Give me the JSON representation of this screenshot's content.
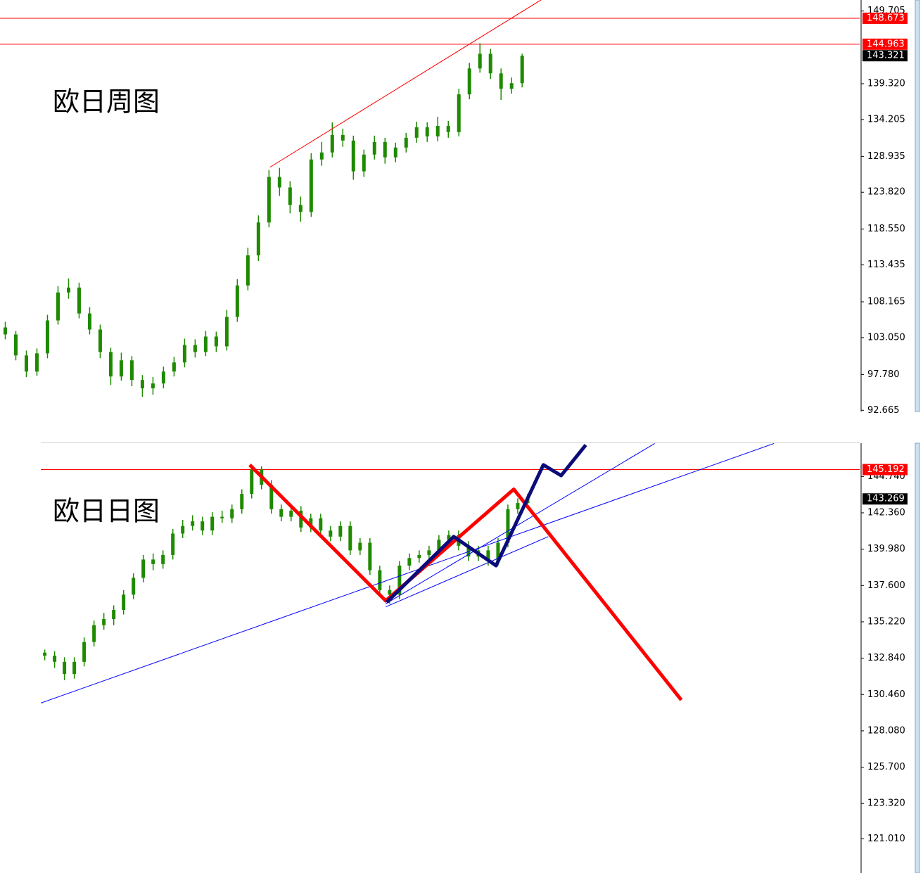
{
  "chart_data": [
    {
      "type": "candlestick",
      "title": "欧日周图",
      "color": "#1f8a00",
      "xlim": [
        -0.5,
        81
      ],
      "ylim": [
        92.49,
        151.28
      ],
      "yticks": [
        149.705,
        {
          "value": 139.32,
          "label": "139.320"
        },
        134.205,
        128.935,
        {
          "value": 123.82,
          "label": "123.820"
        },
        {
          "value": 118.55,
          "label": "118.550"
        },
        113.435,
        108.165,
        {
          "value": 103.05,
          "label": "103.050"
        },
        {
          "value": 97.78,
          "label": "97.780"
        },
        92.665
      ],
      "levels": [
        {
          "value": 148.673,
          "color": "#ff0000",
          "line": true
        },
        {
          "value": 144.963,
          "color": "#ff0000",
          "line": true
        },
        {
          "value": 143.321,
          "color": "#000000",
          "line": false
        }
      ],
      "lines": [
        {
          "color": "#ff0000",
          "style": "thin",
          "x": [
            25.1,
            50.8
          ],
          "y": [
            127.4,
            151.3
          ]
        }
      ],
      "ohlc": [
        [
          104.5,
          105.3,
          102.8,
          103.5
        ],
        [
          103.5,
          104.0,
          99.8,
          100.5
        ],
        [
          100.5,
          101.2,
          97.4,
          98.2
        ],
        [
          98.2,
          101.5,
          97.6,
          100.8
        ],
        [
          100.8,
          106.3,
          100.1,
          105.5
        ],
        [
          105.5,
          110.4,
          104.9,
          109.5
        ],
        [
          109.5,
          111.5,
          108.6,
          110.2
        ],
        [
          110.2,
          110.9,
          105.8,
          106.5
        ],
        [
          106.5,
          107.4,
          103.5,
          104.2
        ],
        [
          104.2,
          104.9,
          100.1,
          101.0
        ],
        [
          101.0,
          101.6,
          96.3,
          97.5
        ],
        [
          97.5,
          100.9,
          96.9,
          99.8
        ],
        [
          99.8,
          100.4,
          96.1,
          97.0
        ],
        [
          97.0,
          97.7,
          94.6,
          95.8
        ],
        [
          95.8,
          97.4,
          94.9,
          96.5
        ],
        [
          96.5,
          98.9,
          95.8,
          98.2
        ],
        [
          98.2,
          100.3,
          97.5,
          99.5
        ],
        [
          99.5,
          102.9,
          98.8,
          102.0
        ],
        [
          102.0,
          102.8,
          100.2,
          101.0
        ],
        [
          101.0,
          104.0,
          100.4,
          103.2
        ],
        [
          103.2,
          103.9,
          101.0,
          101.8
        ],
        [
          101.8,
          107.0,
          101.2,
          106.0
        ],
        [
          106.0,
          111.4,
          105.3,
          110.5
        ],
        [
          110.5,
          115.9,
          109.8,
          114.8
        ],
        [
          114.8,
          120.5,
          114.0,
          119.5
        ],
        [
          119.5,
          127.0,
          118.8,
          126.0
        ],
        [
          126.0,
          127.3,
          123.3,
          124.5
        ],
        [
          124.5,
          125.4,
          120.8,
          122.0
        ],
        [
          122.0,
          123.2,
          119.6,
          121.0
        ],
        [
          121.0,
          129.4,
          120.3,
          128.5
        ],
        [
          128.5,
          131.0,
          127.6,
          129.5
        ],
        [
          129.5,
          133.8,
          128.8,
          132.0
        ],
        [
          132.0,
          132.9,
          130.3,
          131.2
        ],
        [
          131.2,
          131.9,
          125.6,
          126.8
        ],
        [
          126.8,
          129.9,
          126.0,
          129.2
        ],
        [
          129.2,
          131.9,
          128.5,
          131.0
        ],
        [
          131.0,
          131.6,
          127.9,
          128.8
        ],
        [
          128.8,
          130.9,
          128.1,
          130.2
        ],
        [
          130.2,
          132.3,
          129.5,
          131.6
        ],
        [
          131.6,
          133.9,
          130.9,
          133.1
        ],
        [
          133.1,
          133.8,
          131.0,
          131.8
        ],
        [
          131.8,
          134.6,
          131.1,
          133.3
        ],
        [
          133.3,
          134.0,
          131.6,
          132.4
        ],
        [
          132.4,
          138.6,
          131.8,
          137.8
        ],
        [
          137.8,
          142.3,
          137.1,
          141.5
        ],
        [
          141.5,
          145.1,
          140.9,
          143.6
        ],
        [
          143.6,
          144.3,
          140.0,
          140.8
        ],
        [
          140.8,
          141.5,
          137.0,
          138.6
        ],
        [
          138.6,
          140.2,
          137.9,
          139.4
        ],
        [
          139.4,
          143.6,
          138.8,
          143.3
        ]
      ]
    },
    {
      "type": "candlestick",
      "title": "欧日日图",
      "color": "#1f8a00",
      "xlim": [
        -0.4,
        82.7
      ],
      "ylim": [
        118.77,
        146.92
      ],
      "yticks": [
        {
          "value": 144.74,
          "label": "144.740"
        },
        {
          "value": 142.36,
          "label": "142.360"
        },
        {
          "value": 139.98,
          "label": "139.980"
        },
        {
          "value": 137.6,
          "label": "137.600"
        },
        {
          "value": 135.22,
          "label": "135.220"
        },
        {
          "value": 132.84,
          "label": "132.840"
        },
        {
          "value": 130.46,
          "label": "130.460"
        },
        {
          "value": 128.08,
          "label": "128.080"
        },
        {
          "value": 125.7,
          "label": "125.700"
        },
        {
          "value": 123.32,
          "label": "123.320"
        },
        {
          "value": 121.01,
          "label": "121.010"
        }
      ],
      "levels": [
        {
          "value": 145.192,
          "color": "#ff0000",
          "line": true
        },
        {
          "value": 143.269,
          "color": "#000000",
          "line": false
        }
      ],
      "lines": [
        {
          "color": "#0000ff",
          "style": "thin",
          "x": [
            -0.4,
            74
          ],
          "y": [
            129.9,
            146.9
          ]
        },
        {
          "color": "#0000ff",
          "style": "thin",
          "x": [
            34.6,
            61.9
          ],
          "y": [
            136.4,
            146.9
          ]
        },
        {
          "color": "#0000ff",
          "style": "thin",
          "x": [
            34.6,
            51.1
          ],
          "y": [
            136.2,
            140.8
          ]
        },
        {
          "color": "#ff0000",
          "style": "thick",
          "x": [
            20.8,
            34.6,
            47.6,
            64.6
          ],
          "y": [
            145.5,
            136.6,
            143.9,
            130.1
          ]
        },
        {
          "color": "#0b0b7a",
          "style": "thick",
          "x": [
            34.7,
            41.5,
            45.8,
            50.6,
            52.4,
            54.9
          ],
          "y": [
            136.5,
            140.8,
            138.9,
            145.5,
            144.8,
            146.8
          ]
        }
      ],
      "ohlc": [
        [
          133.2,
          133.4,
          132.7,
          133.0
        ],
        [
          133.0,
          133.3,
          132.2,
          132.6
        ],
        [
          132.6,
          132.9,
          131.4,
          131.8
        ],
        [
          131.8,
          132.9,
          131.5,
          132.6
        ],
        [
          132.6,
          134.2,
          132.3,
          133.9
        ],
        [
          133.9,
          135.3,
          133.6,
          135.0
        ],
        [
          135.0,
          135.8,
          134.7,
          135.4
        ],
        [
          135.4,
          136.3,
          135.0,
          136.0
        ],
        [
          136.0,
          137.3,
          135.7,
          137.0
        ],
        [
          137.0,
          138.4,
          136.7,
          138.1
        ],
        [
          138.1,
          139.6,
          137.8,
          139.3
        ],
        [
          139.3,
          139.7,
          138.6,
          139.0
        ],
        [
          139.0,
          139.9,
          138.7,
          139.6
        ],
        [
          139.6,
          141.3,
          139.3,
          141.0
        ],
        [
          141.0,
          141.9,
          140.7,
          141.5
        ],
        [
          141.5,
          142.2,
          141.2,
          141.8
        ],
        [
          141.8,
          142.1,
          140.9,
          141.2
        ],
        [
          141.2,
          142.4,
          140.9,
          142.1
        ],
        [
          142.1,
          142.5,
          141.7,
          142.0
        ],
        [
          142.0,
          142.9,
          141.7,
          142.6
        ],
        [
          142.6,
          143.9,
          142.3,
          143.6
        ],
        [
          143.6,
          145.5,
          143.3,
          145.2
        ],
        [
          145.2,
          145.4,
          143.9,
          144.2
        ],
        [
          144.2,
          144.5,
          142.3,
          142.6
        ],
        [
          142.6,
          142.9,
          141.8,
          142.1
        ],
        [
          142.1,
          142.8,
          141.8,
          142.5
        ],
        [
          142.5,
          142.8,
          141.1,
          141.4
        ],
        [
          141.4,
          142.3,
          141.1,
          142.0
        ],
        [
          142.0,
          142.3,
          140.9,
          141.2
        ],
        [
          141.2,
          141.5,
          140.5,
          140.8
        ],
        [
          140.8,
          141.8,
          140.5,
          141.5
        ],
        [
          141.5,
          141.8,
          139.6,
          139.9
        ],
        [
          139.9,
          140.7,
          139.6,
          140.4
        ],
        [
          140.4,
          140.7,
          138.3,
          138.6
        ],
        [
          138.6,
          138.9,
          137.0,
          137.3
        ],
        [
          137.3,
          137.6,
          136.4,
          137.0
        ],
        [
          137.0,
          139.2,
          136.7,
          138.9
        ],
        [
          138.9,
          139.7,
          138.6,
          139.4
        ],
        [
          139.4,
          139.9,
          139.1,
          139.6
        ],
        [
          139.6,
          140.2,
          139.3,
          139.9
        ],
        [
          139.9,
          140.9,
          139.6,
          140.6
        ],
        [
          140.6,
          141.2,
          140.3,
          140.9
        ],
        [
          140.9,
          141.2,
          139.9,
          140.2
        ],
        [
          140.2,
          140.5,
          139.2,
          139.5
        ],
        [
          139.5,
          140.2,
          139.2,
          139.9
        ],
        [
          139.9,
          140.2,
          138.9,
          139.2
        ],
        [
          139.2,
          140.7,
          138.9,
          140.4
        ],
        [
          140.4,
          142.9,
          140.1,
          142.6
        ],
        [
          142.6,
          143.3,
          142.3,
          143.0
        ],
        [
          143.0,
          143.6,
          142.7,
          143.3
        ]
      ]
    }
  ]
}
